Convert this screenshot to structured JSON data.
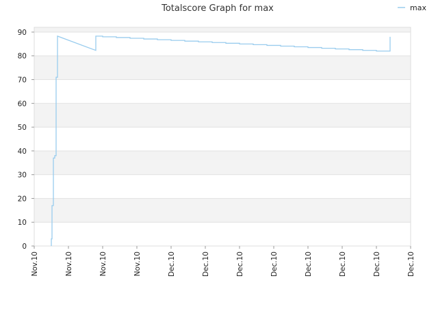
{
  "chart_data": {
    "type": "line",
    "title": "Totalscore Graph for max",
    "xlabel": "",
    "ylabel": "",
    "ylim": [
      0,
      92
    ],
    "yticks": [
      0,
      10,
      20,
      30,
      40,
      50,
      60,
      70,
      80,
      90
    ],
    "xtick_labels": [
      "Nov.10",
      "Nov.10",
      "Nov.10",
      "Nov.10",
      "Dec.10",
      "Dec.10",
      "Dec.10",
      "Dec.10",
      "Dec.10",
      "Dec.10",
      "Dec.10",
      "Dec.10"
    ],
    "grid": true,
    "legend_position": "top-right",
    "series": [
      {
        "name": "max",
        "color": "#99ccee",
        "points": [
          [
            0.5,
            0
          ],
          [
            0.5,
            3
          ],
          [
            0.52,
            3
          ],
          [
            0.52,
            17
          ],
          [
            0.56,
            17
          ],
          [
            0.56,
            37
          ],
          [
            0.6,
            37
          ],
          [
            0.6,
            38
          ],
          [
            0.64,
            38
          ],
          [
            0.64,
            71
          ],
          [
            0.68,
            71
          ],
          [
            0.68,
            88.3
          ],
          [
            1.8,
            82.3
          ],
          [
            1.8,
            88.3
          ],
          [
            2.0,
            88.3
          ],
          [
            2.0,
            88.0
          ],
          [
            2.4,
            88.0
          ],
          [
            2.4,
            87.7
          ],
          [
            2.8,
            87.7
          ],
          [
            2.8,
            87.4
          ],
          [
            3.2,
            87.4
          ],
          [
            3.2,
            87.1
          ],
          [
            3.6,
            87.1
          ],
          [
            3.6,
            86.8
          ],
          [
            4.0,
            86.8
          ],
          [
            4.0,
            86.5
          ],
          [
            4.4,
            86.5
          ],
          [
            4.4,
            86.2
          ],
          [
            4.8,
            86.2
          ],
          [
            4.8,
            85.9
          ],
          [
            5.2,
            85.9
          ],
          [
            5.2,
            85.6
          ],
          [
            5.6,
            85.6
          ],
          [
            5.6,
            85.3
          ],
          [
            6.0,
            85.3
          ],
          [
            6.0,
            85.0
          ],
          [
            6.4,
            85.0
          ],
          [
            6.4,
            84.7
          ],
          [
            6.8,
            84.7
          ],
          [
            6.8,
            84.4
          ],
          [
            7.2,
            84.4
          ],
          [
            7.2,
            84.1
          ],
          [
            7.6,
            84.1
          ],
          [
            7.6,
            83.8
          ],
          [
            8.0,
            83.8
          ],
          [
            8.0,
            83.5
          ],
          [
            8.4,
            83.5
          ],
          [
            8.4,
            83.2
          ],
          [
            8.8,
            83.2
          ],
          [
            8.8,
            82.9
          ],
          [
            9.2,
            82.9
          ],
          [
            9.2,
            82.6
          ],
          [
            9.6,
            82.6
          ],
          [
            9.6,
            82.3
          ],
          [
            10.0,
            82.3
          ],
          [
            10.0,
            82.0
          ],
          [
            10.4,
            82.0
          ],
          [
            10.4,
            88.0
          ]
        ]
      }
    ]
  }
}
